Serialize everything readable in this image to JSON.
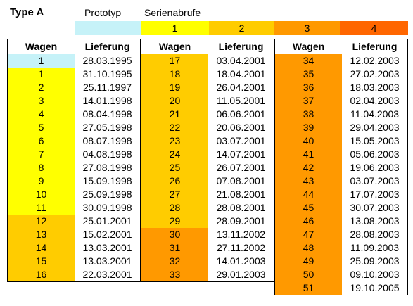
{
  "header": {
    "title": "Type A",
    "prototype_label": "Prototyp",
    "series_label": "Serienabrufe",
    "legend": [
      {
        "label": "",
        "color": "#c6f2f8"
      },
      {
        "label": "1",
        "color": "#ffff00"
      },
      {
        "label": "2",
        "color": "#ffcc00"
      },
      {
        "label": "3",
        "color": "#ff9900"
      },
      {
        "label": "4",
        "color": "#ff6600"
      }
    ]
  },
  "colors": {
    "prototype": "#c6f2f8",
    "s1": "#ffff00",
    "s2": "#ffcc00",
    "s3": "#ff9900",
    "s4": "#ff6600"
  },
  "tables": [
    {
      "col_wagen": "Wagen",
      "col_lieferung": "Lieferung",
      "rows": [
        {
          "wagen": "1",
          "lieferung": "28.03.1995",
          "abruf": "prototype"
        },
        {
          "wagen": "1",
          "lieferung": "31.10.1995",
          "abruf": "s1"
        },
        {
          "wagen": "2",
          "lieferung": "25.11.1997",
          "abruf": "s1"
        },
        {
          "wagen": "3",
          "lieferung": "14.01.1998",
          "abruf": "s1"
        },
        {
          "wagen": "4",
          "lieferung": "08.04.1998",
          "abruf": "s1"
        },
        {
          "wagen": "5",
          "lieferung": "27.05.1998",
          "abruf": "s1"
        },
        {
          "wagen": "6",
          "lieferung": "08.07.1998",
          "abruf": "s1"
        },
        {
          "wagen": "7",
          "lieferung": "04.08.1998",
          "abruf": "s1"
        },
        {
          "wagen": "8",
          "lieferung": "27.08.1998",
          "abruf": "s1"
        },
        {
          "wagen": "9",
          "lieferung": "15.09.1998",
          "abruf": "s1"
        },
        {
          "wagen": "10",
          "lieferung": "25.09.1998",
          "abruf": "s1"
        },
        {
          "wagen": "11",
          "lieferung": "30.09.1998",
          "abruf": "s1"
        },
        {
          "wagen": "12",
          "lieferung": "25.01.2001",
          "abruf": "s2"
        },
        {
          "wagen": "13",
          "lieferung": "15.02.2001",
          "abruf": "s2"
        },
        {
          "wagen": "14",
          "lieferung": "13.03.2001",
          "abruf": "s2"
        },
        {
          "wagen": "15",
          "lieferung": "13.03.2001",
          "abruf": "s2"
        },
        {
          "wagen": "16",
          "lieferung": "22.03.2001",
          "abruf": "s2"
        }
      ]
    },
    {
      "col_wagen": "Wagen",
      "col_lieferung": "Lieferung",
      "rows": [
        {
          "wagen": "17",
          "lieferung": "03.04.2001",
          "abruf": "s2"
        },
        {
          "wagen": "18",
          "lieferung": "18.04.2001",
          "abruf": "s2"
        },
        {
          "wagen": "19",
          "lieferung": "26.04.2001",
          "abruf": "s2"
        },
        {
          "wagen": "20",
          "lieferung": "11.05.2001",
          "abruf": "s2"
        },
        {
          "wagen": "21",
          "lieferung": "06.06.2001",
          "abruf": "s2"
        },
        {
          "wagen": "22",
          "lieferung": "20.06.2001",
          "abruf": "s2"
        },
        {
          "wagen": "23",
          "lieferung": "03.07.2001",
          "abruf": "s2"
        },
        {
          "wagen": "24",
          "lieferung": "14.07.2001",
          "abruf": "s2"
        },
        {
          "wagen": "25",
          "lieferung": "26.07.2001",
          "abruf": "s2"
        },
        {
          "wagen": "26",
          "lieferung": "07.08.2001",
          "abruf": "s2"
        },
        {
          "wagen": "27",
          "lieferung": "21.08.2001",
          "abruf": "s2"
        },
        {
          "wagen": "28",
          "lieferung": "28.08.2001",
          "abruf": "s2"
        },
        {
          "wagen": "29",
          "lieferung": "28.09.2001",
          "abruf": "s2"
        },
        {
          "wagen": "30",
          "lieferung": "13.11.2002",
          "abruf": "s3"
        },
        {
          "wagen": "31",
          "lieferung": "27.11.2002",
          "abruf": "s3"
        },
        {
          "wagen": "32",
          "lieferung": "14.01.2003",
          "abruf": "s3"
        },
        {
          "wagen": "33",
          "lieferung": "29.01.2003",
          "abruf": "s3"
        }
      ]
    },
    {
      "col_wagen": "Wagen",
      "col_lieferung": "Lieferung",
      "rows": [
        {
          "wagen": "34",
          "lieferung": "12.02.2003",
          "abruf": "s3"
        },
        {
          "wagen": "35",
          "lieferung": "27.02.2003",
          "abruf": "s3"
        },
        {
          "wagen": "36",
          "lieferung": "18.03.2003",
          "abruf": "s3"
        },
        {
          "wagen": "37",
          "lieferung": "02.04.2003",
          "abruf": "s3"
        },
        {
          "wagen": "38",
          "lieferung": "11.04.2003",
          "abruf": "s3"
        },
        {
          "wagen": "39",
          "lieferung": "29.04.2003",
          "abruf": "s3"
        },
        {
          "wagen": "40",
          "lieferung": "15.05.2003",
          "abruf": "s3"
        },
        {
          "wagen": "41",
          "lieferung": "05.06.2003",
          "abruf": "s3"
        },
        {
          "wagen": "42",
          "lieferung": "19.06.2003",
          "abruf": "s3"
        },
        {
          "wagen": "43",
          "lieferung": "03.07.2003",
          "abruf": "s3"
        },
        {
          "wagen": "44",
          "lieferung": "17.07.2003",
          "abruf": "s3"
        },
        {
          "wagen": "45",
          "lieferung": "30.07.2003",
          "abruf": "s3"
        },
        {
          "wagen": "46",
          "lieferung": "13.08.2003",
          "abruf": "s3"
        },
        {
          "wagen": "47",
          "lieferung": "28.08.2003",
          "abruf": "s3"
        },
        {
          "wagen": "48",
          "lieferung": "11.09.2003",
          "abruf": "s3"
        },
        {
          "wagen": "49",
          "lieferung": "25.09.2003",
          "abruf": "s3"
        },
        {
          "wagen": "50",
          "lieferung": "09.10.2003",
          "abruf": "s3"
        },
        {
          "wagen": "51",
          "lieferung": "19.10.2005",
          "abruf": "s3"
        }
      ]
    }
  ]
}
